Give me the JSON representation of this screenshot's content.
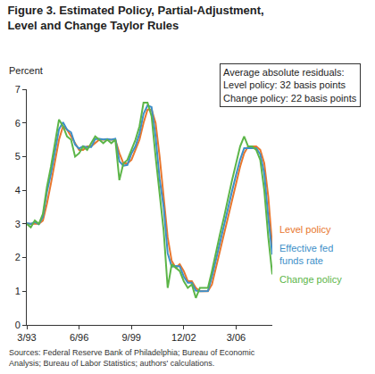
{
  "chart_data": {
    "type": "line",
    "title": "Figure 3. Estimated Policy, Partial-Adjustment, Level and Change Taylor Rules",
    "y_label": "Percent",
    "annotation": [
      "Average absolute residuals:",
      "Level policy: 32 basis points",
      "Change policy: 22 basis points"
    ],
    "source": "Sources: Federal Reserve Bank of Philadelphia; Bureau of Economic Analysis; Bureau of Labor Statistics; authors' calculations.",
    "categories": [
      "3/93",
      null,
      null,
      null,
      null,
      null,
      null,
      null,
      null,
      null,
      null,
      null,
      null,
      "6/96",
      null,
      null,
      null,
      null,
      null,
      null,
      null,
      null,
      null,
      null,
      null,
      null,
      "9/99",
      null,
      null,
      null,
      null,
      null,
      null,
      null,
      null,
      null,
      null,
      null,
      null,
      "12/02",
      null,
      null,
      null,
      null,
      null,
      null,
      null,
      null,
      null,
      null,
      null,
      null,
      "3/06",
      null,
      null,
      null,
      null,
      null,
      null,
      null,
      null,
      null
    ],
    "series": [
      {
        "name": "Level policy",
        "color": "#e8762d",
        "values": [
          3.0,
          3.0,
          3.0,
          3.0,
          3.1,
          3.6,
          4.2,
          4.8,
          5.5,
          5.9,
          5.8,
          5.6,
          5.4,
          5.2,
          5.2,
          5.3,
          5.3,
          5.4,
          5.5,
          5.5,
          5.5,
          5.5,
          5.5,
          5.1,
          4.8,
          4.8,
          4.9,
          5.2,
          5.5,
          6.0,
          6.4,
          6.4,
          6.0,
          5.0,
          3.8,
          2.6,
          1.9,
          1.7,
          1.8,
          1.6,
          1.3,
          1.3,
          1.1,
          1.0,
          1.0,
          1.0,
          1.2,
          1.7,
          2.2,
          2.7,
          3.2,
          3.7,
          4.2,
          4.7,
          5.1,
          5.3,
          5.3,
          5.3,
          5.2,
          4.8,
          3.8,
          2.3
        ]
      },
      {
        "name": "Effective fed funds rate",
        "color": "#3d8fc8",
        "values": [
          3.02,
          3.0,
          3.06,
          2.99,
          3.21,
          3.94,
          4.49,
          5.17,
          5.81,
          6.02,
          5.8,
          5.72,
          5.36,
          5.24,
          5.31,
          5.28,
          5.28,
          5.52,
          5.53,
          5.51,
          5.52,
          5.5,
          5.53,
          4.86,
          4.73,
          4.75,
          5.09,
          5.31,
          5.68,
          6.27,
          6.52,
          6.47,
          5.59,
          4.33,
          3.5,
          2.13,
          1.73,
          1.75,
          1.74,
          1.44,
          1.25,
          1.25,
          1.02,
          1.0,
          1.0,
          1.01,
          1.43,
          1.95,
          2.47,
          2.94,
          3.46,
          3.98,
          4.46,
          4.91,
          5.25,
          5.25,
          5.26,
          5.25,
          5.07,
          4.5,
          3.18,
          2.09
        ]
      },
      {
        "name": "Change policy",
        "color": "#5cb548",
        "values": [
          3.0,
          2.9,
          3.1,
          3.0,
          3.3,
          4.1,
          4.7,
          5.4,
          6.1,
          5.9,
          5.6,
          5.5,
          5.0,
          5.1,
          5.3,
          5.2,
          5.4,
          5.6,
          5.5,
          5.4,
          5.5,
          5.4,
          5.5,
          4.3,
          4.8,
          4.9,
          5.2,
          5.5,
          5.9,
          6.6,
          6.6,
          6.2,
          5.0,
          3.9,
          2.8,
          1.1,
          1.8,
          1.7,
          1.6,
          1.3,
          1.1,
          1.2,
          0.8,
          1.1,
          1.1,
          1.1,
          1.6,
          2.2,
          2.7,
          3.2,
          3.8,
          4.3,
          4.8,
          5.3,
          5.6,
          5.3,
          5.3,
          5.2,
          4.9,
          4.0,
          2.6,
          1.5
        ]
      }
    ],
    "ylim": [
      0,
      7
    ],
    "yticks": [
      0,
      1,
      2,
      3,
      4,
      5,
      6,
      7
    ],
    "grid": false
  }
}
